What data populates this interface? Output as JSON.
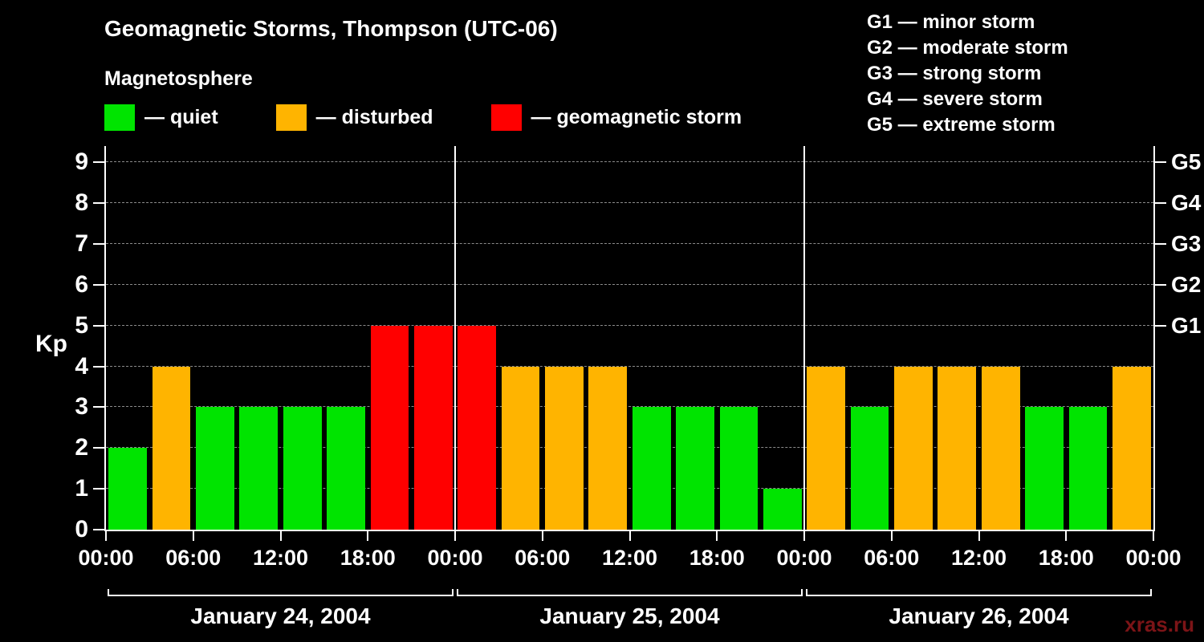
{
  "header": {
    "title": "Geomagnetic Storms, Thompson (UTC-06)",
    "subtitle": "Magnetosphere"
  },
  "legend": {
    "items": [
      {
        "name": "quiet",
        "label": "— quiet",
        "color": "#00e400"
      },
      {
        "name": "disturbed",
        "label": "— disturbed",
        "color": "#ffb400"
      },
      {
        "name": "storm",
        "label": "— geomagnetic storm",
        "color": "#ff0000"
      }
    ]
  },
  "storm_scale": {
    "items": [
      {
        "label": "G1 — minor storm"
      },
      {
        "label": "G2 — moderate storm"
      },
      {
        "label": "G3 — strong storm"
      },
      {
        "label": "G4 — severe storm"
      },
      {
        "label": "G5 — extreme storm"
      }
    ]
  },
  "watermark": {
    "text": "xras.ru",
    "color": "#7c1417"
  },
  "chart_data": {
    "type": "bar",
    "title": "Geomagnetic Storms, Thompson (UTC-06)",
    "ylabel": "Kp",
    "ylim": [
      0,
      9.4
    ],
    "yticks": [
      0,
      1,
      2,
      3,
      4,
      5,
      6,
      7,
      8,
      9
    ],
    "right_axis_ticks": [
      {
        "kp": 5,
        "label": "G1"
      },
      {
        "kp": 6,
        "label": "G2"
      },
      {
        "kp": 7,
        "label": "G3"
      },
      {
        "kp": 8,
        "label": "G4"
      },
      {
        "kp": 9,
        "label": "G5"
      }
    ],
    "x_tick_labels": [
      "00:00",
      "06:00",
      "12:00",
      "18:00",
      "00:00",
      "06:00",
      "12:00",
      "18:00",
      "00:00",
      "06:00",
      "12:00",
      "18:00",
      "00:00"
    ],
    "bar_interval_hours": 3,
    "days": [
      {
        "date": "January 24, 2004",
        "kp_values": [
          2,
          4,
          3,
          3,
          3,
          3,
          5,
          5
        ]
      },
      {
        "date": "January 25, 2004",
        "kp_values": [
          5,
          4,
          4,
          4,
          3,
          3,
          3,
          1
        ]
      },
      {
        "date": "January 26, 2004",
        "kp_values": [
          4,
          3,
          4,
          4,
          4,
          3,
          3,
          4
        ]
      }
    ],
    "color_rule": {
      "quiet_max_kp": 3,
      "disturbed_max_kp": 4
    },
    "colors": {
      "quiet": "#00e400",
      "disturbed": "#ffb400",
      "storm": "#ff0000"
    },
    "grid": "dashed horizontal line at each integer Kp level",
    "legend_position": "top-left"
  }
}
